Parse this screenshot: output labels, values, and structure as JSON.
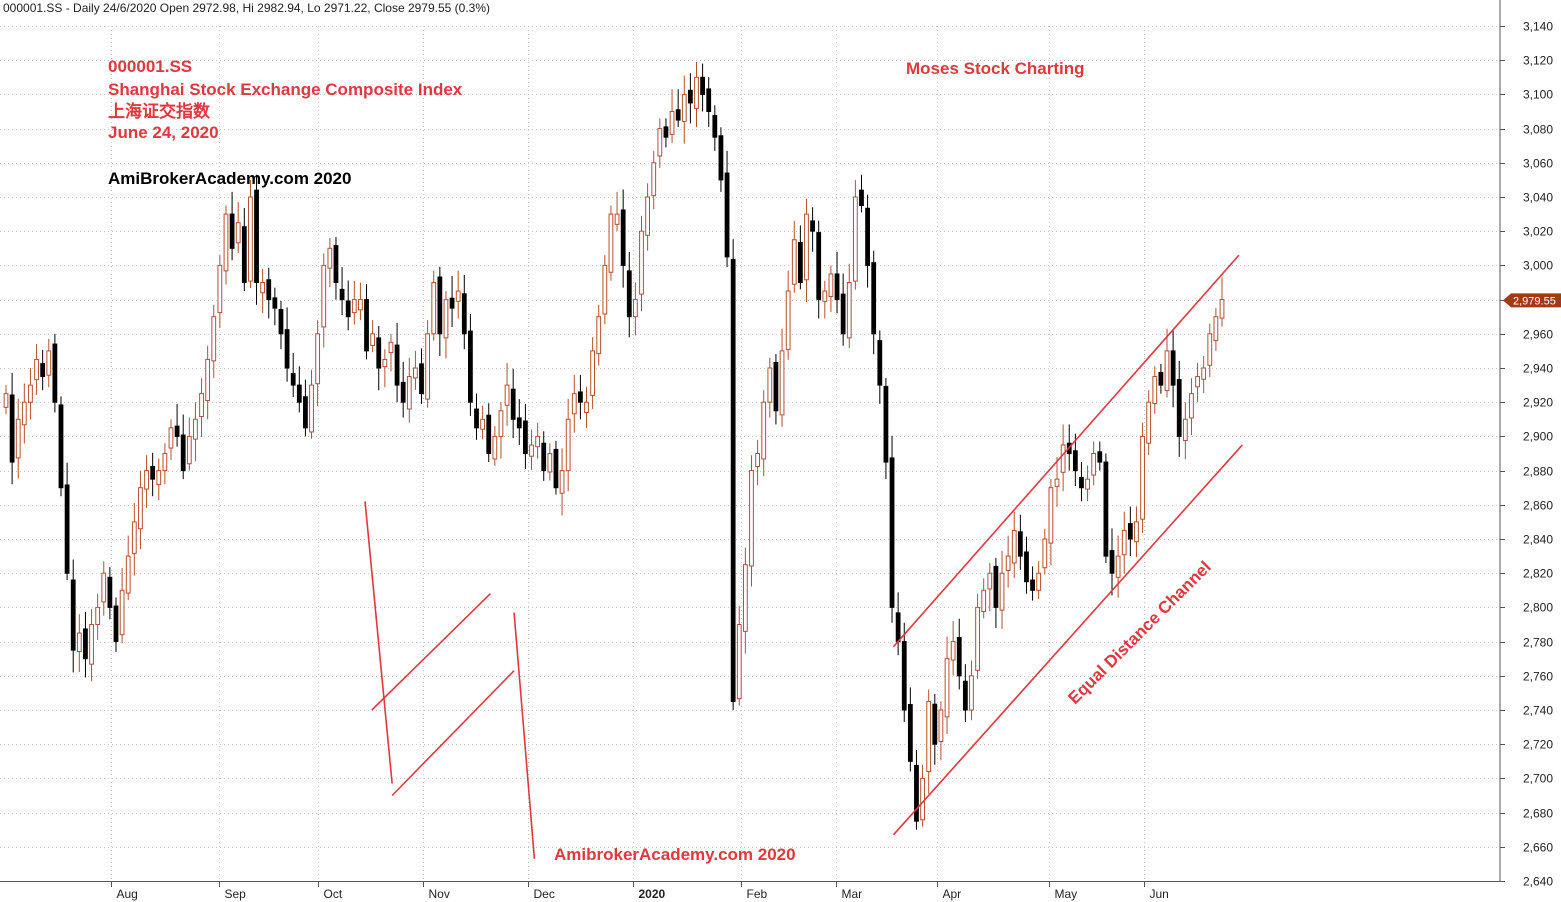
{
  "header": {
    "text": "000001.SS - Daily 24/6/2020 Open 2972.98, Hi 2982.94, Lo 2971.22, Close 2979.55 (0.3%)"
  },
  "titles": {
    "symbol": "000001.SS",
    "name": "Shanghai Stock Exchange Composite Index",
    "chinese": "上海证交指数",
    "date": "June 24, 2020",
    "brand_top": "AmiBrokerAcademy.com  2020",
    "moses": "Moses Stock Charting",
    "brand_bottom": "AmibrokerAcademy.com  2020",
    "channel": "Equal Distance Channel"
  },
  "price_label": "2,979.55",
  "colors": {
    "up": "#b5502e",
    "down": "#000000",
    "annotation": "#e0383e",
    "grid": "#c8c8c8",
    "price_tag": "#a33a16"
  },
  "chart_data": {
    "type": "candlestick",
    "ylim": [
      2640,
      3140
    ],
    "y_ticks": [
      "3,140",
      "3,120",
      "3,100",
      "3,080",
      "3,060",
      "3,040",
      "3,020",
      "3,000",
      "2,980",
      "2,960",
      "2,940",
      "2,920",
      "2,900",
      "2,880",
      "2,860",
      "2,840",
      "2,820",
      "2,800",
      "2,780",
      "2,760",
      "2,740",
      "2,720",
      "2,700",
      "2,680",
      "2,660",
      "2,640"
    ],
    "x_ticks": [
      {
        "label": "Aug",
        "date": "2019-08-01"
      },
      {
        "label": "Sep",
        "date": "2019-09-02"
      },
      {
        "label": "Oct",
        "date": "2019-10-01"
      },
      {
        "label": "Nov",
        "date": "2019-11-01"
      },
      {
        "label": "Dec",
        "date": "2019-12-02"
      },
      {
        "label": "2020",
        "date": "2020-01-02"
      },
      {
        "label": "Feb",
        "date": "2020-02-03"
      },
      {
        "label": "Mar",
        "date": "2020-03-02"
      },
      {
        "label": "Apr",
        "date": "2020-04-01"
      },
      {
        "label": "May",
        "date": "2020-05-04"
      },
      {
        "label": "Jun",
        "date": "2020-06-01"
      }
    ],
    "date_range": [
      "2019-07-01",
      "2020-06-24"
    ],
    "last_close": 2979.55,
    "closes": [
      2925,
      2885,
      2910,
      2920,
      2930,
      2945,
      2935,
      2950,
      2920,
      2870,
      2820,
      2775,
      2785,
      2770,
      2790,
      2800,
      2820,
      2800,
      2780,
      2810,
      2830,
      2850,
      2870,
      2880,
      2875,
      2880,
      2890,
      2905,
      2900,
      2880,
      2900,
      2910,
      2925,
      2945,
      2970,
      3000,
      3030,
      3010,
      3025,
      2990,
      3040,
      2990,
      2990,
      2980,
      2975,
      2960,
      2940,
      2930,
      2920,
      2905,
      2930,
      2960,
      3000,
      3010,
      2990,
      2980,
      2970,
      2980,
      2980,
      2950,
      2960,
      2940,
      2945,
      2955,
      2930,
      2920,
      2935,
      2940,
      2925,
      2960,
      2990,
      2960,
      2980,
      2975,
      2985,
      2960,
      2920,
      2905,
      2910,
      2890,
      2900,
      2915,
      2930,
      2910,
      2905,
      2890,
      2895,
      2900,
      2880,
      2890,
      2870,
      2880,
      2910,
      2925,
      2920,
      2920,
      2950,
      2970,
      3000,
      3030,
      3030,
      3000,
      2970,
      2980,
      3020,
      3040,
      3060,
      3080,
      3075,
      3090,
      3085,
      3100,
      3095,
      3110,
      3100,
      3090,
      3075,
      3050,
      3005,
      2745,
      2790,
      2825,
      2880,
      2890,
      2920,
      2940,
      2915,
      2950,
      2985,
      3015,
      2990,
      3030,
      3020,
      2980,
      2985,
      2995,
      2980,
      2960,
      2990,
      3040,
      3035,
      3000,
      2960,
      2930,
      2885,
      2800,
      2780,
      2740,
      2710,
      2675,
      2700,
      2745,
      2720,
      2740,
      2770,
      2780,
      2760,
      2740,
      2760,
      2800,
      2810,
      2820,
      2800,
      2820,
      2830,
      2845,
      2830,
      2815,
      2810,
      2820,
      2840,
      2870,
      2875,
      2895,
      2890,
      2880,
      2870,
      2875,
      2890,
      2885,
      2830,
      2820,
      2830,
      2845,
      2840,
      2850,
      2900,
      2920,
      2935,
      2930,
      2950,
      2930,
      2900,
      2910,
      2925,
      2935,
      2940,
      2960,
      2970,
      2980
    ]
  },
  "channel_lines": [
    {
      "from": {
        "date": "2020-03-19",
        "value": 2777
      },
      "to": {
        "date": "2020-06-29",
        "value": 3006
      }
    },
    {
      "from": {
        "date": "2020-03-19",
        "value": 2667
      },
      "to": {
        "date": "2020-06-30",
        "value": 2895
      }
    }
  ],
  "annotation_lines": [
    {
      "from": {
        "date": "2019-10-15",
        "value": 2862
      },
      "to": {
        "date": "2019-10-23",
        "value": 2697
      }
    },
    {
      "from": {
        "date": "2019-10-17",
        "value": 2740
      },
      "to": {
        "date": "2019-11-21",
        "value": 2808
      }
    },
    {
      "from": {
        "date": "2019-10-23",
        "value": 2690
      },
      "to": {
        "date": "2019-11-28",
        "value": 2763
      }
    },
    {
      "from": {
        "date": "2019-11-28",
        "value": 2797
      },
      "to": {
        "date": "2019-12-04",
        "value": 2653
      }
    }
  ]
}
